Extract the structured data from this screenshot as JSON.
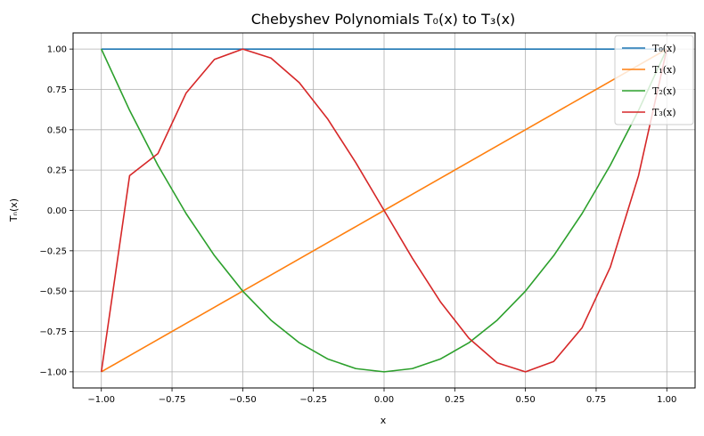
{
  "chart_data": {
    "type": "line",
    "title": "Chebyshev Polynomials T₀(x) to T₃(x)",
    "xlabel": "x",
    "ylabel": "Tₙ(x)",
    "xlim": [
      -1.1,
      1.1
    ],
    "ylim": [
      -1.1,
      1.1
    ],
    "x_ticks": [
      -1.0,
      -0.75,
      -0.5,
      -0.25,
      0.0,
      0.25,
      0.5,
      0.75,
      1.0
    ],
    "y_ticks": [
      -1.0,
      -0.75,
      -0.5,
      -0.25,
      0.0,
      0.25,
      0.5,
      0.75,
      1.0
    ],
    "x_tick_labels": [
      "−1.00",
      "−0.75",
      "−0.50",
      "−0.25",
      "0.00",
      "0.25",
      "0.50",
      "0.75",
      "1.00"
    ],
    "y_tick_labels": [
      "−1.00",
      "−0.75",
      "−0.50",
      "−0.25",
      "0.00",
      "0.25",
      "0.50",
      "0.75",
      "1.00"
    ],
    "grid": true,
    "legend_position": "top-right",
    "x": [
      -1.0,
      -0.9,
      -0.8,
      -0.7,
      -0.6,
      -0.5,
      -0.4,
      -0.3,
      -0.2,
      -0.1,
      0.0,
      0.1,
      0.2,
      0.3,
      0.4,
      0.5,
      0.6,
      0.7,
      0.8,
      0.9,
      1.0
    ],
    "series": [
      {
        "name": "T₀(x)",
        "color": "#1f77b4",
        "values": [
          1,
          1,
          1,
          1,
          1,
          1,
          1,
          1,
          1,
          1,
          1,
          1,
          1,
          1,
          1,
          1,
          1,
          1,
          1,
          1,
          1
        ]
      },
      {
        "name": "T₁(x)",
        "color": "#ff7f0e",
        "values": [
          -1.0,
          -0.9,
          -0.8,
          -0.7,
          -0.6,
          -0.5,
          -0.4,
          -0.3,
          -0.2,
          -0.1,
          0.0,
          0.1,
          0.2,
          0.3,
          0.4,
          0.5,
          0.6,
          0.7,
          0.8,
          0.9,
          1.0
        ]
      },
      {
        "name": "T₂(x)",
        "color": "#2ca02c",
        "values": [
          1.0,
          0.62,
          0.28,
          -0.02,
          -0.28,
          -0.5,
          -0.68,
          -0.82,
          -0.92,
          -0.98,
          -1.0,
          -0.98,
          -0.92,
          -0.82,
          -0.68,
          -0.5,
          -0.28,
          -0.02,
          0.28,
          0.62,
          1.0
        ]
      },
      {
        "name": "T₃(x)",
        "color": "#d62728",
        "values": [
          -1.0,
          0.216,
          0.352,
          0.728,
          0.936,
          1.0,
          0.944,
          0.792,
          0.568,
          0.296,
          0.0,
          -0.296,
          -0.568,
          -0.792,
          -0.944,
          -1.0,
          -0.936,
          -0.728,
          -0.352,
          0.216,
          1.0
        ]
      }
    ]
  }
}
